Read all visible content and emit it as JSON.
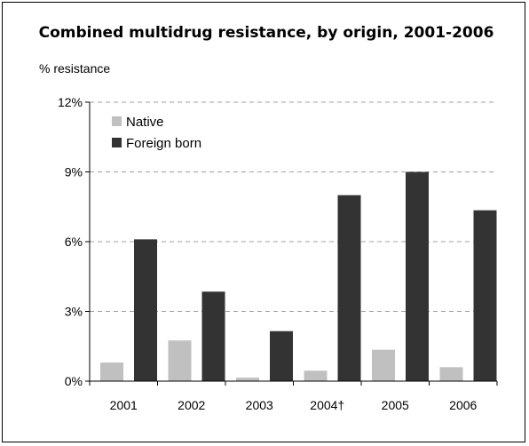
{
  "chart_data": {
    "type": "bar",
    "title": "Combined multidrug resistance, by origin, 2001-2006",
    "ylabel": "% resistance",
    "xlabel": "",
    "categories": [
      "2001",
      "2002",
      "2003",
      "2004†",
      "2005",
      "2006"
    ],
    "series": [
      {
        "name": "Native",
        "values": [
          0.8,
          1.75,
          0.15,
          0.45,
          1.35,
          0.6
        ],
        "color": "#c0c0c0"
      },
      {
        "name": "Foreign born",
        "values": [
          6.1,
          3.85,
          2.15,
          8.0,
          9.0,
          7.35
        ],
        "color": "#333333"
      }
    ],
    "ylim": [
      0,
      12
    ],
    "yticks": [
      0,
      3,
      6,
      9,
      12
    ],
    "ytick_labels": [
      "0%",
      "3%",
      "6%",
      "9%",
      "12%"
    ],
    "grid": true,
    "legend_position": "top-left"
  }
}
